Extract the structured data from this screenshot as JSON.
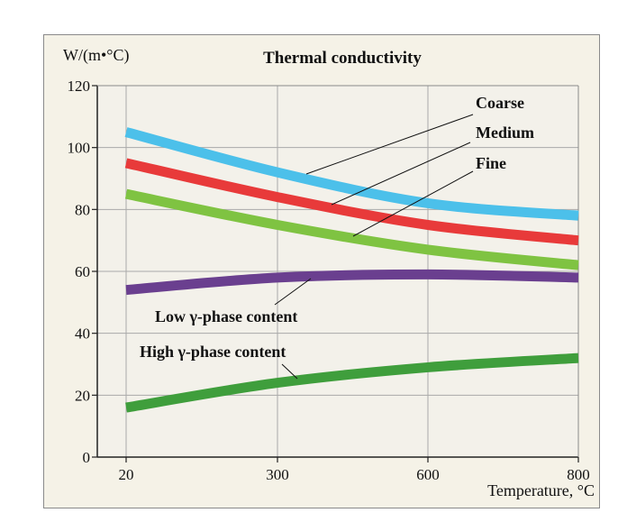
{
  "chart_data": {
    "type": "line",
    "title": "Thermal conductivity",
    "ylabel": "W/(m•°C)",
    "xlabel": "Temperature, °C",
    "xlim": [
      20,
      800
    ],
    "ylim": [
      0,
      120
    ],
    "xticks": [
      20,
      300,
      600,
      800
    ],
    "yticks": [
      0,
      20,
      40,
      60,
      80,
      100,
      120
    ],
    "x": [
      20,
      300,
      600,
      800
    ],
    "grid": true,
    "series": [
      {
        "name": "Coarse",
        "color": "#4cc0ea",
        "values": [
          105,
          92,
          82,
          78
        ]
      },
      {
        "name": "Medium",
        "color": "#e83a3a",
        "values": [
          95,
          84,
          75,
          70
        ]
      },
      {
        "name": "Fine",
        "color": "#7fc342",
        "values": [
          85,
          75,
          67,
          62
        ]
      },
      {
        "name": "Low γ-phase content",
        "color": "#6a3f8f",
        "values": [
          54,
          58,
          59,
          58
        ]
      },
      {
        "name": "High γ-phase content",
        "color": "#3f9e3c",
        "values": [
          16,
          24,
          29,
          32
        ]
      }
    ]
  }
}
